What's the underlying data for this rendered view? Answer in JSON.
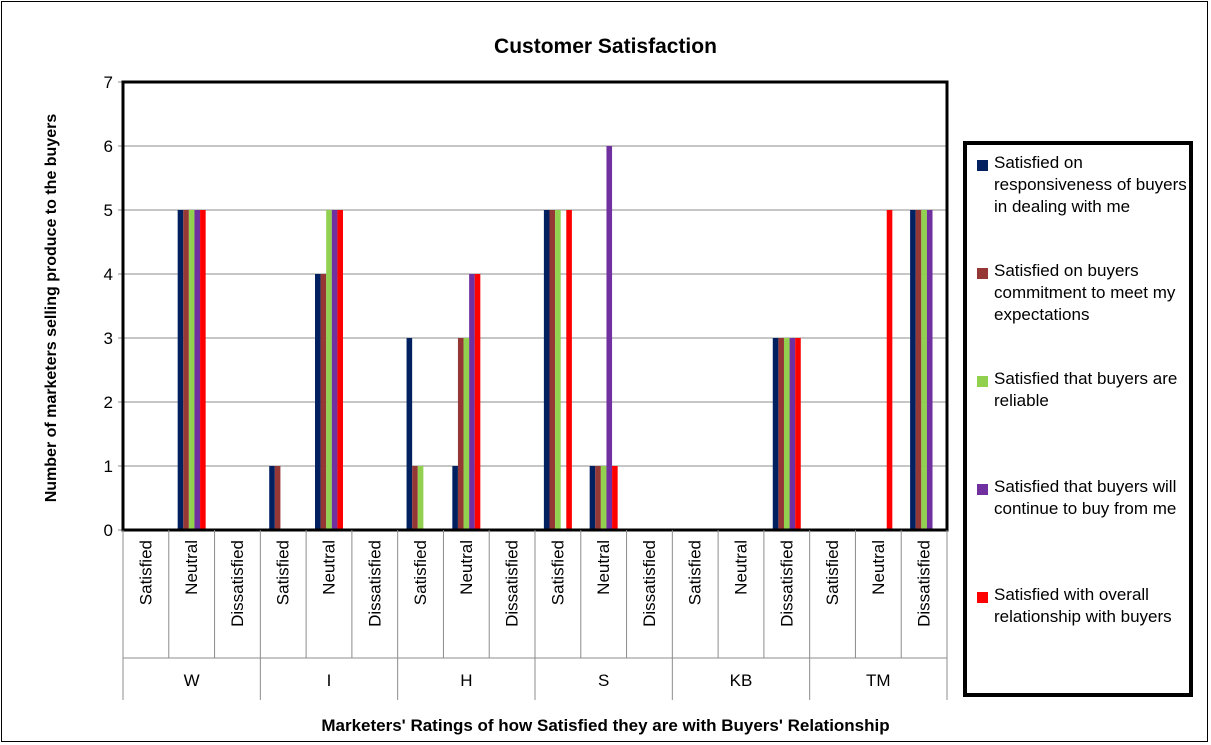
{
  "chart_data": {
    "type": "bar",
    "title": "Customer Satisfaction",
    "xlabel": "Marketers' Ratings of how Satisfied they are with Buyers' Relationship",
    "ylabel": "Number of marketers selling produce to the buyers",
    "ylim": [
      0,
      7
    ],
    "yticks": [
      0,
      1,
      2,
      3,
      4,
      5,
      6,
      7
    ],
    "grid": "horizontal",
    "legend_position": "right",
    "groups": [
      "W",
      "I",
      "H",
      "S",
      "KB",
      "TM"
    ],
    "subcategories": [
      "Satisfied",
      "Neutral",
      "Dissatisfied"
    ],
    "categories": [
      "W - Satisfied",
      "W - Neutral",
      "W - Dissatisfied",
      "I - Satisfied",
      "I - Neutral",
      "I - Dissatisfied",
      "H - Satisfied",
      "H - Neutral",
      "H - Dissatisfied",
      "S - Satisfied",
      "S - Neutral",
      "S - Dissatisfied",
      "KB - Satisfied",
      "KB - Neutral",
      "KB - Dissatisfied",
      "TM - Satisfied",
      "TM - Neutral",
      "TM - Dissatisfied"
    ],
    "series": [
      {
        "name": "Satisfied on responsiveness of buyers in dealing with me",
        "color": "#002060",
        "values": [
          0,
          5,
          0,
          1,
          4,
          0,
          3,
          1,
          0,
          5,
          1,
          0,
          0,
          0,
          3,
          0,
          0,
          5
        ]
      },
      {
        "name": "Satisfied on buyers commitment to meet my expectations",
        "color": "#953735",
        "values": [
          0,
          5,
          0,
          1,
          4,
          0,
          1,
          3,
          0,
          5,
          1,
          0,
          0,
          0,
          3,
          0,
          0,
          5
        ]
      },
      {
        "name": "Satisfied that buyers are reliable",
        "color": "#92d050",
        "values": [
          0,
          5,
          0,
          0,
          5,
          0,
          1,
          3,
          0,
          5,
          1,
          0,
          0,
          0,
          3,
          0,
          0,
          5
        ]
      },
      {
        "name": "Satisfied that buyers will continue to buy from me",
        "color": "#7030a0",
        "values": [
          0,
          5,
          0,
          0,
          5,
          0,
          0,
          4,
          0,
          0,
          6,
          0,
          0,
          0,
          3,
          0,
          0,
          5
        ]
      },
      {
        "name": "Satisfied with overall relationship with buyers",
        "color": "#ff0000",
        "values": [
          0,
          5,
          0,
          0,
          5,
          0,
          0,
          4,
          0,
          5,
          1,
          0,
          0,
          0,
          3,
          0,
          5,
          0
        ]
      }
    ]
  }
}
